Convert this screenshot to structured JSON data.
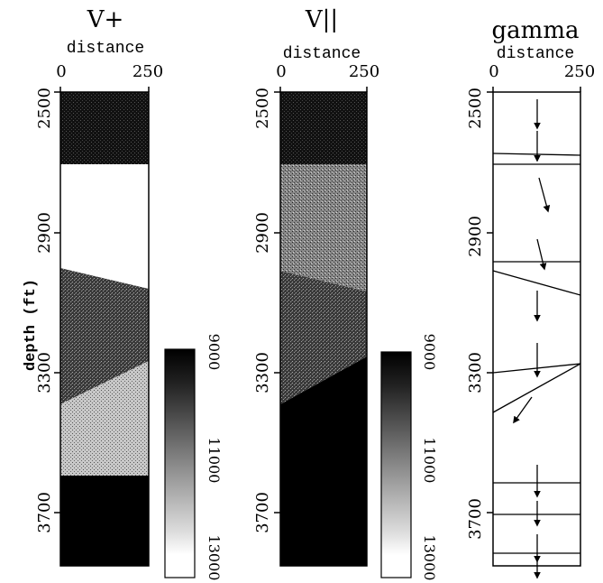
{
  "panels": [
    {
      "title": "V+",
      "xlabel": "distance",
      "x_ticks": [
        "0",
        "250"
      ],
      "y_ticks": [
        "2500",
        "2900",
        "3300",
        "3700"
      ]
    },
    {
      "title": "V||",
      "xlabel": "distance",
      "x_ticks": [
        "0",
        "250"
      ],
      "y_ticks": [
        "2500",
        "2900",
        "3300",
        "3700"
      ]
    },
    {
      "title": "gamma",
      "xlabel": "distance",
      "x_ticks": [
        "0",
        "250"
      ],
      "y_ticks": [
        "2500",
        "2900",
        "3300",
        "3700"
      ]
    }
  ],
  "ylabel": "depth (ft)",
  "colorbars": [
    {
      "ticks": [
        "9000",
        "11000",
        "13000"
      ]
    },
    {
      "ticks": [
        "9000",
        "11000",
        "13000"
      ]
    }
  ]
}
